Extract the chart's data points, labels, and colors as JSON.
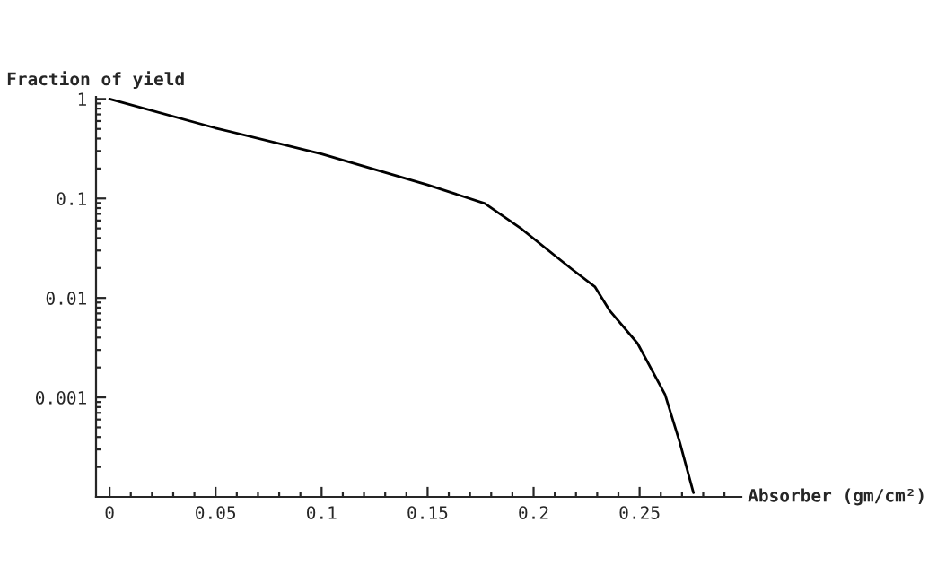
{
  "chart_data": {
    "type": "line",
    "ylabel": "Fraction of yield",
    "xlabel": "Absorber (gm/cm²)",
    "x": [
      0,
      0.05,
      0.1,
      0.15,
      0.177,
      0.194,
      0.218,
      0.229,
      0.236,
      0.249,
      0.262,
      0.269,
      0.2754
    ],
    "series": [
      {
        "color": "#000000",
        "values": [
          1,
          0.51,
          0.28,
          0.137,
          0.089,
          0.05,
          0.0195,
          0.0129,
          0.0074,
          0.0035,
          0.00107,
          0.00035,
          0.00011
        ]
      }
    ],
    "log": "y",
    "xlim": [
      -0.0064,
      0.298
    ],
    "ylim": [
      0.0001,
      1.05
    ],
    "xticks": [
      0,
      0.05,
      0.1,
      0.15,
      0.2,
      0.25
    ],
    "yticks": [
      0.001,
      0.01,
      0.1,
      1
    ],
    "grid": false,
    "legend": false,
    "marker": "none",
    "line_style": "solid"
  }
}
